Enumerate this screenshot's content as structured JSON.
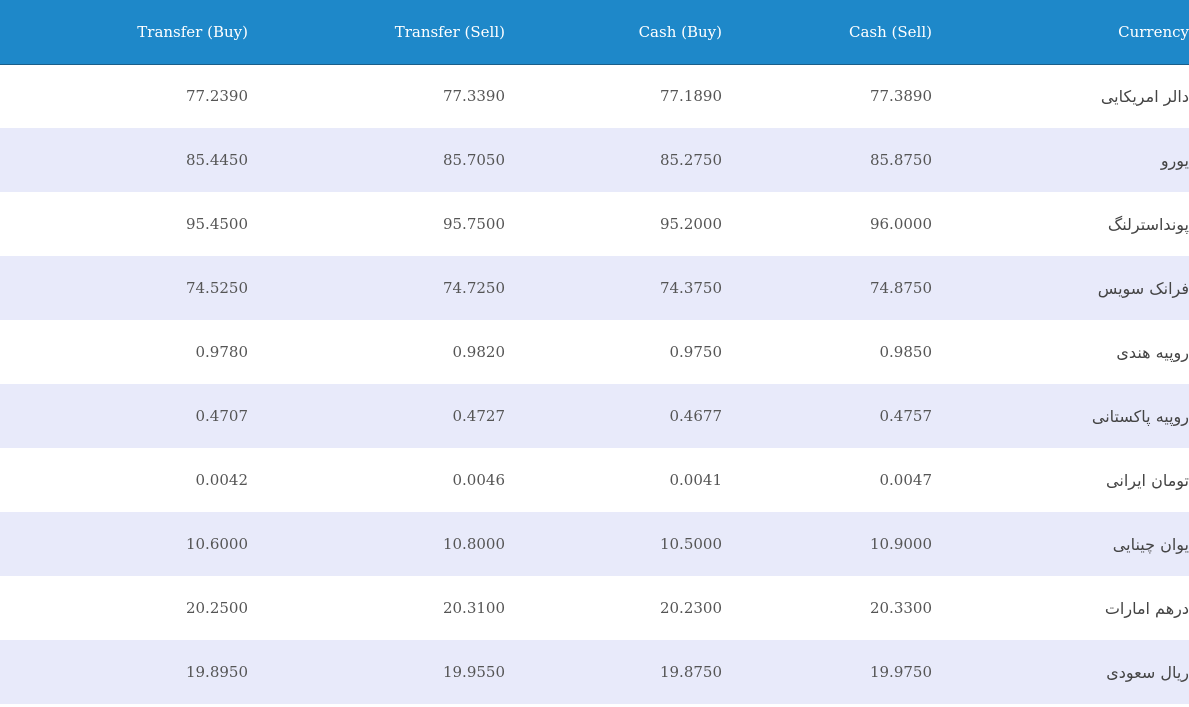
{
  "table": {
    "headers": {
      "transfer_buy": "Transfer (Buy)",
      "transfer_sell": "Transfer (Sell)",
      "cash_buy": "Cash (Buy)",
      "cash_sell": "Cash (Sell)",
      "currency": "Currency"
    },
    "rows": [
      {
        "transfer_buy": "77.2390",
        "transfer_sell": "77.3390",
        "cash_buy": "77.1890",
        "cash_sell": "77.3890",
        "currency": "دالر امریکایی"
      },
      {
        "transfer_buy": "85.4450",
        "transfer_sell": "85.7050",
        "cash_buy": "85.2750",
        "cash_sell": "85.8750",
        "currency": "یورو"
      },
      {
        "transfer_buy": "95.4500",
        "transfer_sell": "95.7500",
        "cash_buy": "95.2000",
        "cash_sell": "96.0000",
        "currency": "پونداسترلنگ"
      },
      {
        "transfer_buy": "74.5250",
        "transfer_sell": "74.7250",
        "cash_buy": "74.3750",
        "cash_sell": "74.8750",
        "currency": "فرانک سویس"
      },
      {
        "transfer_buy": "0.9780",
        "transfer_sell": "0.9820",
        "cash_buy": "0.9750",
        "cash_sell": "0.9850",
        "currency": "روپیه هندی"
      },
      {
        "transfer_buy": "0.4707",
        "transfer_sell": "0.4727",
        "cash_buy": "0.4677",
        "cash_sell": "0.4757",
        "currency": "روپیه پاکستانی"
      },
      {
        "transfer_buy": "0.0042",
        "transfer_sell": "0.0046",
        "cash_buy": "0.0041",
        "cash_sell": "0.0047",
        "currency": "تومان ایرانی"
      },
      {
        "transfer_buy": "10.6000",
        "transfer_sell": "10.8000",
        "cash_buy": "10.5000",
        "cash_sell": "10.9000",
        "currency": "یوان چینایی"
      },
      {
        "transfer_buy": "20.2500",
        "transfer_sell": "20.3100",
        "cash_buy": "20.2300",
        "cash_sell": "20.3300",
        "currency": "درهم امارات"
      },
      {
        "transfer_buy": "19.8950",
        "transfer_sell": "19.9550",
        "cash_buy": "19.8750",
        "cash_sell": "19.9750",
        "currency": "ریال سعودی"
      }
    ]
  },
  "colors": {
    "header_background": "#1e88c9",
    "row_alt_background": "#e8eafa"
  }
}
